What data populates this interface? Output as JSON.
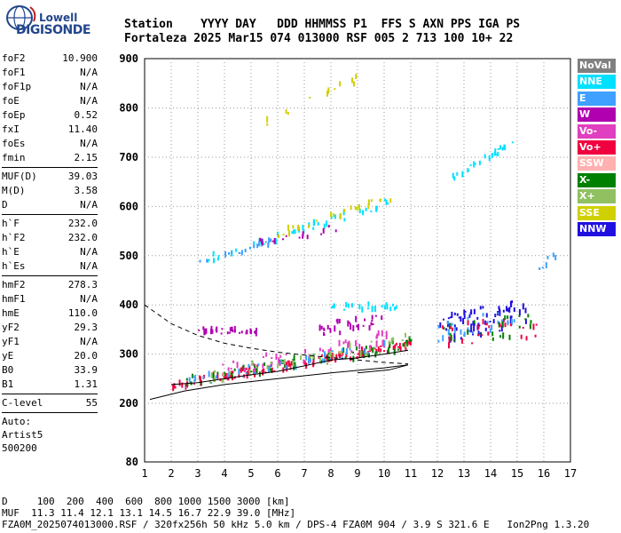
{
  "logo": {
    "line1": "Lowell",
    "line2": "DIGISONDE"
  },
  "header": {
    "line1": "Station    YYYY DAY   DDD HHMMSS P1  FFS S AXN PPS IGA PS",
    "line2": "Fortaleza 2025 Mar15 074 013000 RSF 005 2 713 100 10+ 22"
  },
  "params": {
    "group1": [
      {
        "label": "foF2",
        "value": "10.900"
      },
      {
        "label": "foF1",
        "value": "N/A"
      },
      {
        "label": "foF1p",
        "value": "N/A"
      },
      {
        "label": "foE",
        "value": "N/A"
      },
      {
        "label": "foEp",
        "value": "0.52"
      },
      {
        "label": "fxI",
        "value": "11.40"
      },
      {
        "label": "foEs",
        "value": "N/A"
      },
      {
        "label": "fmin",
        "value": "2.15"
      }
    ],
    "group2": [
      {
        "label": "MUF(D)",
        "value": "39.03"
      },
      {
        "label": "M(D)",
        "value": "3.58"
      },
      {
        "label": "D",
        "value": "N/A"
      }
    ],
    "group3": [
      {
        "label": "h`F",
        "value": "232.0"
      },
      {
        "label": "h`F2",
        "value": "232.0"
      },
      {
        "label": "h`E",
        "value": "N/A"
      },
      {
        "label": "h`Es",
        "value": "N/A"
      }
    ],
    "group4": [
      {
        "label": "hmF2",
        "value": "278.3"
      },
      {
        "label": "hmF1",
        "value": "N/A"
      },
      {
        "label": "hmE",
        "value": "110.0"
      },
      {
        "label": "yF2",
        "value": "29.3"
      },
      {
        "label": "yF1",
        "value": "N/A"
      },
      {
        "label": "yE",
        "value": "20.0"
      },
      {
        "label": "B0",
        "value": "33.9"
      },
      {
        "label": "B1",
        "value": "1.31"
      }
    ],
    "group5": [
      {
        "label": "C-level",
        "value": "55"
      }
    ],
    "auto": [
      "Auto:",
      "Artist5",
      "500200"
    ]
  },
  "legend": [
    {
      "label": "NoVal",
      "color": "#808080"
    },
    {
      "label": "NNE",
      "color": "#00e0ff"
    },
    {
      "label": "E",
      "color": "#3fa0ff"
    },
    {
      "label": "W",
      "color": "#b000b0"
    },
    {
      "label": "Vo-",
      "color": "#e040c0"
    },
    {
      "label": "Vo+",
      "color": "#f00040"
    },
    {
      "label": "SSW",
      "color": "#ffb0b0"
    },
    {
      "label": "X-",
      "color": "#008000"
    },
    {
      "label": "X+",
      "color": "#90c060"
    },
    {
      "label": "SSE",
      "color": "#d0d000"
    },
    {
      "label": "NNW",
      "color": "#2010e0"
    }
  ],
  "footer": {
    "line1": "D     100  200  400  600  800 1000 1500 3000 [km]",
    "line2": "MUF  11.3 11.4 12.1 13.1 14.5 16.7 22.9 39.0 [MHz]",
    "line3": "FZA0M_2025074013000.RSF / 320fx256h 50 kHz 5.0 km / DPS-4 FZA0M 904 / 3.9 S 321.6 E   Ion2Png 1.3.20"
  },
  "chart_data": {
    "type": "scatter",
    "xlim": [
      1,
      17
    ],
    "ylim": [
      80,
      900
    ],
    "x_ticks": [
      1,
      2,
      3,
      4,
      5,
      6,
      7,
      8,
      9,
      10,
      11,
      12,
      13,
      14,
      15,
      16,
      17
    ],
    "y_ticks": [
      80,
      200,
      300,
      400,
      500,
      600,
      700,
      800,
      900
    ],
    "grid": "dotted",
    "legend_placement": "right",
    "lines": [
      {
        "style": "dashed",
        "points": [
          [
            1,
            400
          ],
          [
            2,
            362
          ],
          [
            3,
            338
          ],
          [
            4,
            322
          ],
          [
            5,
            312
          ],
          [
            6,
            304
          ],
          [
            7,
            298
          ],
          [
            8,
            293
          ],
          [
            9,
            288
          ],
          [
            10,
            283
          ],
          [
            10.9,
            280
          ]
        ]
      },
      {
        "style": "solid",
        "points": [
          [
            1.2,
            208
          ],
          [
            2.5,
            225
          ],
          [
            4,
            238
          ],
          [
            6,
            250
          ],
          [
            8,
            262
          ],
          [
            10,
            272
          ],
          [
            10.9,
            278
          ],
          [
            10.2,
            268
          ],
          [
            9,
            262
          ]
        ]
      },
      {
        "style": "solid-black",
        "points": [
          [
            2,
            238
          ],
          [
            3,
            242
          ],
          [
            4,
            250
          ],
          [
            5,
            258
          ],
          [
            6,
            265
          ],
          [
            7,
            276
          ],
          [
            8,
            288
          ],
          [
            9,
            292
          ],
          [
            9.5,
            296
          ],
          [
            10,
            300
          ],
          [
            10.9,
            308
          ]
        ]
      }
    ],
    "traces": [
      {
        "series": "Vo+",
        "x0": 2.0,
        "x1": 11.0,
        "y0": 238,
        "y1": 320,
        "n": 140,
        "spread": 9
      },
      {
        "series": "X-",
        "x0": 2.5,
        "x1": 11.0,
        "y0": 242,
        "y1": 322,
        "n": 60,
        "spread": 12
      },
      {
        "series": "Vo-",
        "x0": 3.5,
        "x1": 10.5,
        "y0": 262,
        "y1": 338,
        "n": 50,
        "spread": 16
      },
      {
        "series": "E",
        "x0": 2.5,
        "x1": 10.5,
        "y0": 244,
        "y1": 320,
        "n": 40,
        "spread": 12
      },
      {
        "series": "X+",
        "x0": 3.0,
        "x1": 11.0,
        "y0": 248,
        "y1": 328,
        "n": 40,
        "spread": 14
      },
      {
        "series": "W",
        "x0": 3.0,
        "x1": 5.3,
        "y0": 348,
        "y1": 345,
        "n": 35,
        "spread": 6
      },
      {
        "series": "W",
        "x0": 7.5,
        "x1": 10.0,
        "y0": 350,
        "y1": 368,
        "n": 30,
        "spread": 14
      },
      {
        "series": "NNE",
        "x0": 8.0,
        "x1": 10.5,
        "y0": 395,
        "y1": 398,
        "n": 25,
        "spread": 6
      },
      {
        "series": "NNW",
        "x0": 12.0,
        "x1": 15.3,
        "y0": 350,
        "y1": 385,
        "n": 70,
        "spread": 28
      },
      {
        "series": "E",
        "x0": 12.0,
        "x1": 15.0,
        "y0": 345,
        "y1": 375,
        "n": 30,
        "spread": 20
      },
      {
        "series": "X-",
        "x0": 12.0,
        "x1": 15.5,
        "y0": 340,
        "y1": 360,
        "n": 25,
        "spread": 22
      },
      {
        "series": "Vo+",
        "x0": 12.0,
        "x1": 15.8,
        "y0": 338,
        "y1": 355,
        "n": 25,
        "spread": 22
      },
      {
        "series": "NNE",
        "x0": 3.2,
        "x1": 10.5,
        "y0": 490,
        "y1": 615,
        "n": 45,
        "spread": 8
      },
      {
        "series": "E",
        "x0": 3.0,
        "x1": 6.0,
        "y0": 488,
        "y1": 532,
        "n": 20,
        "spread": 6
      },
      {
        "series": "SSE",
        "x0": 6.0,
        "x1": 10.3,
        "y0": 545,
        "y1": 618,
        "n": 25,
        "spread": 8
      },
      {
        "series": "W",
        "x0": 5.0,
        "x1": 8.5,
        "y0": 525,
        "y1": 560,
        "n": 15,
        "spread": 8
      },
      {
        "series": "NNE",
        "x0": 12.5,
        "x1": 14.8,
        "y0": 655,
        "y1": 730,
        "n": 25,
        "spread": 6
      },
      {
        "series": "SSE",
        "x0": 5.3,
        "x1": 10.0,
        "y0": 770,
        "y1": 880,
        "n": 12,
        "spread": 10
      },
      {
        "series": "E",
        "x0": 15.8,
        "x1": 16.5,
        "y0": 480,
        "y1": 500,
        "n": 6,
        "spread": 8
      }
    ]
  }
}
